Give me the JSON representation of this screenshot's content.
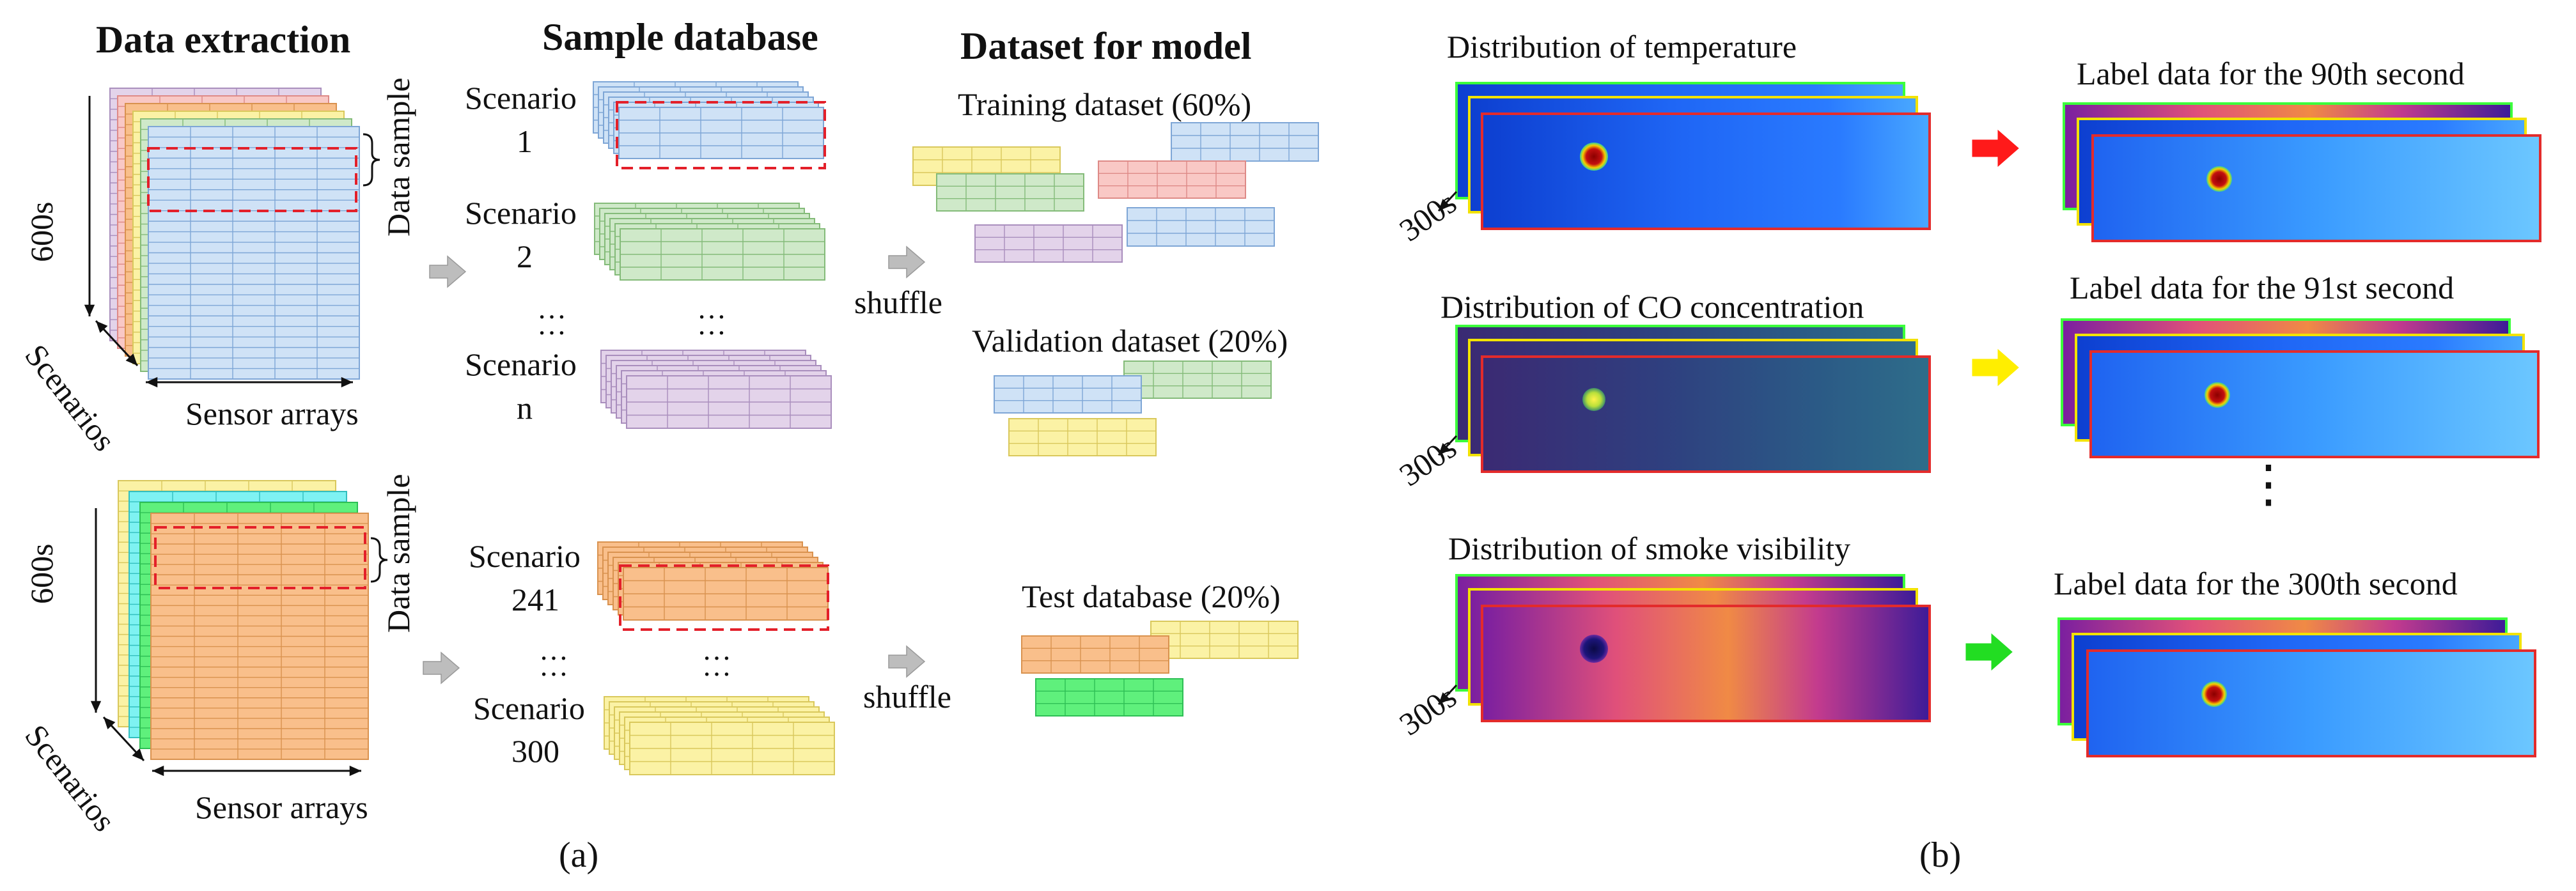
{
  "panel_a": {
    "caption": "(a)",
    "headers": {
      "extraction": "Data extraction",
      "sample_db": "Sample database",
      "dataset": "Dataset for model"
    },
    "extraction_axes": {
      "time": "600s",
      "scenarios": "Scenarios",
      "sensors": "Sensor arrays",
      "data_sample": "Data sample"
    },
    "scenario_word": "Scenario",
    "scenario_numbers": [
      "1",
      "2",
      "n",
      "241",
      "300"
    ],
    "ellipsis": "…\n…",
    "shuffle": "shuffle",
    "datasets": {
      "training": "Training dataset (60%)",
      "validation": "Validation dataset (20%)",
      "test": "Test database (20%)"
    },
    "colors": {
      "blue": "#cfe2f6",
      "blue_line": "#7ea6d6",
      "green": "#cfe9c9",
      "green_line": "#84bb79",
      "purple": "#e3d3ea",
      "purple_line": "#a98ebd",
      "orange": "#f9bf8b",
      "orange_line": "#d9924f",
      "yellow": "#fbf2a5",
      "yellow_line": "#d9c85c",
      "pink": "#f9c8c5",
      "pink_line": "#de8a87",
      "cyan": "#7ef2f2",
      "bright_green": "#5ff07c",
      "dash_red": "#e3202a",
      "arrow_gray": "#bdbdbd"
    }
  },
  "panel_b": {
    "caption": "(b)",
    "inputs": [
      "Distribution of temperature",
      "Distribution of CO concentration",
      "Distribution of smoke visibility"
    ],
    "labels": [
      "Label data for the 90th second",
      "Label data for the 91st second",
      "Label data for the 300th second"
    ],
    "depth": "300s",
    "vertical_dots": "⋮",
    "arrow_colors": [
      "#ff1a1a",
      "#ffee00",
      "#22dd22"
    ]
  }
}
